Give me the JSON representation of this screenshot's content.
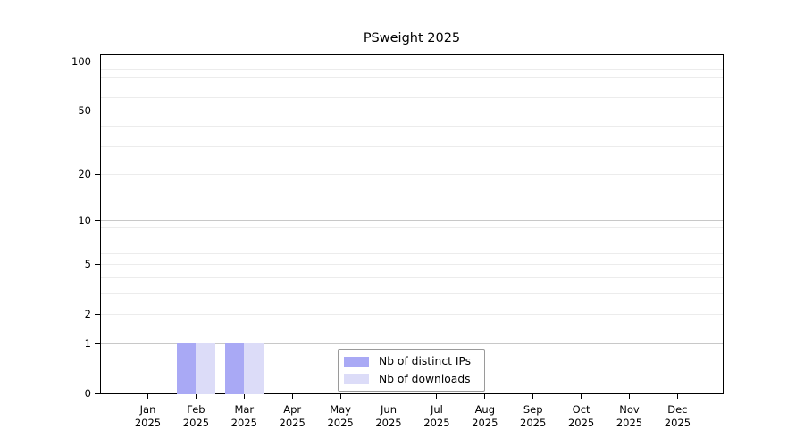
{
  "chart_data": {
    "type": "bar",
    "title": "PSweight 2025",
    "categories": [
      {
        "month": "Jan",
        "year": "2025"
      },
      {
        "month": "Feb",
        "year": "2025"
      },
      {
        "month": "Mar",
        "year": "2025"
      },
      {
        "month": "Apr",
        "year": "2025"
      },
      {
        "month": "May",
        "year": "2025"
      },
      {
        "month": "Jun",
        "year": "2025"
      },
      {
        "month": "Jul",
        "year": "2025"
      },
      {
        "month": "Aug",
        "year": "2025"
      },
      {
        "month": "Sep",
        "year": "2025"
      },
      {
        "month": "Oct",
        "year": "2025"
      },
      {
        "month": "Nov",
        "year": "2025"
      },
      {
        "month": "Dec",
        "year": "2025"
      }
    ],
    "series": [
      {
        "name": "Nb of distinct IPs",
        "color": "#a9a9f5",
        "values": [
          0,
          1,
          1,
          0,
          0,
          0,
          0,
          0,
          0,
          0,
          0,
          0
        ]
      },
      {
        "name": "Nb of downloads",
        "color": "#dcdcf8",
        "values": [
          0,
          1,
          1,
          0,
          0,
          0,
          0,
          0,
          0,
          0,
          0,
          0
        ]
      }
    ],
    "y_axis": {
      "scale": "log1p",
      "range": [
        0,
        100
      ],
      "tick_values": [
        0,
        1,
        2,
        5,
        10,
        20,
        50,
        100
      ],
      "minor_grid_values": [
        2,
        3,
        4,
        5,
        6,
        7,
        8,
        9,
        20,
        30,
        40,
        50,
        60,
        70,
        80,
        90
      ],
      "major_grid_values": [
        1,
        10,
        100
      ]
    },
    "legend": {
      "position": "bottom-center-inside",
      "items": [
        "Nb of distinct IPs",
        "Nb of downloads"
      ]
    },
    "colors": {
      "axis": "#000000",
      "grid_minor": "#ececec",
      "grid_major": "#c8c8c8",
      "legend_border": "#9a9a9a",
      "text": "#000000",
      "background": "#ffffff"
    }
  }
}
